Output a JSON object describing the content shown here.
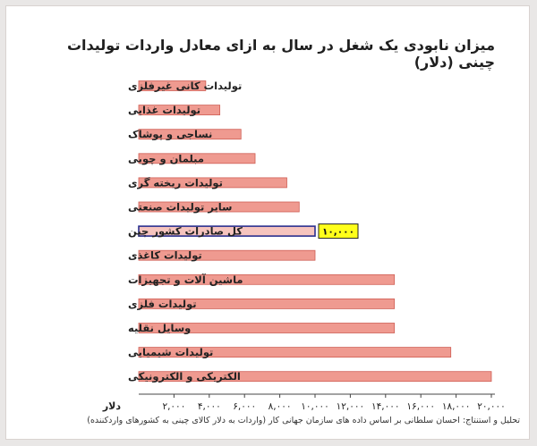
{
  "chart_data": {
    "type": "bar",
    "orientation": "horizontal",
    "title": "میزان نابودی یک شغل در سال به ازای معادل واردات تولیدات چینی (دلار)",
    "xlabel": "دلار",
    "xlim": [
      0,
      20000
    ],
    "xticks": [
      "۲,۰۰۰",
      "۴,۰۰۰",
      "۶,۰۰۰",
      "۸,۰۰۰",
      "۱۰,۰۰۰",
      "۱۲,۰۰۰",
      "۱۴,۰۰۰",
      "۱۶,۰۰۰",
      "۱۸,۰۰۰",
      "۲۰,۰۰۰"
    ],
    "xtick_values": [
      2000,
      4000,
      6000,
      8000,
      10000,
      12000,
      14000,
      16000,
      18000,
      20000
    ],
    "categories": [
      "تولیدات کانی غیرفلزی",
      "تولیدات غذایی",
      "نساجی و پوشاک",
      "مبلمان و چوبی",
      "تولیدات ریخته گری",
      "سایر تولیدات صنعتی",
      "کل صادرات کشور چین",
      "تولیدات کاغذی",
      "ماشین آلات و تجهیزات",
      "تولیدات فلزی",
      "وسایل نقلیه",
      "تولیدات شیمیایی",
      "الکتریکی و الکترونیکی"
    ],
    "values": [
      3800,
      4600,
      5800,
      6600,
      8400,
      9100,
      10000,
      10000,
      14500,
      14500,
      14500,
      17700,
      20000
    ],
    "highlight_index": 6,
    "highlight_label": "۱۰,۰۰۰",
    "grid": false,
    "legend": "none"
  },
  "source_note": "تحلیل و استنتاج: احسان سلطانی بر اساس داده های سازمان جهانی کار (واردات به دلار کالای چینی به کشورهای واردکننده)",
  "colors": {
    "bar_fill": "#ef9a90",
    "bar_edge": "#cf5f55",
    "highlight_fill": "#f6c4be",
    "highlight_edge": "#2a2f8f",
    "label_box_fill": "#ffff1a",
    "label_box_edge": "#222222",
    "axis": "#444444"
  }
}
